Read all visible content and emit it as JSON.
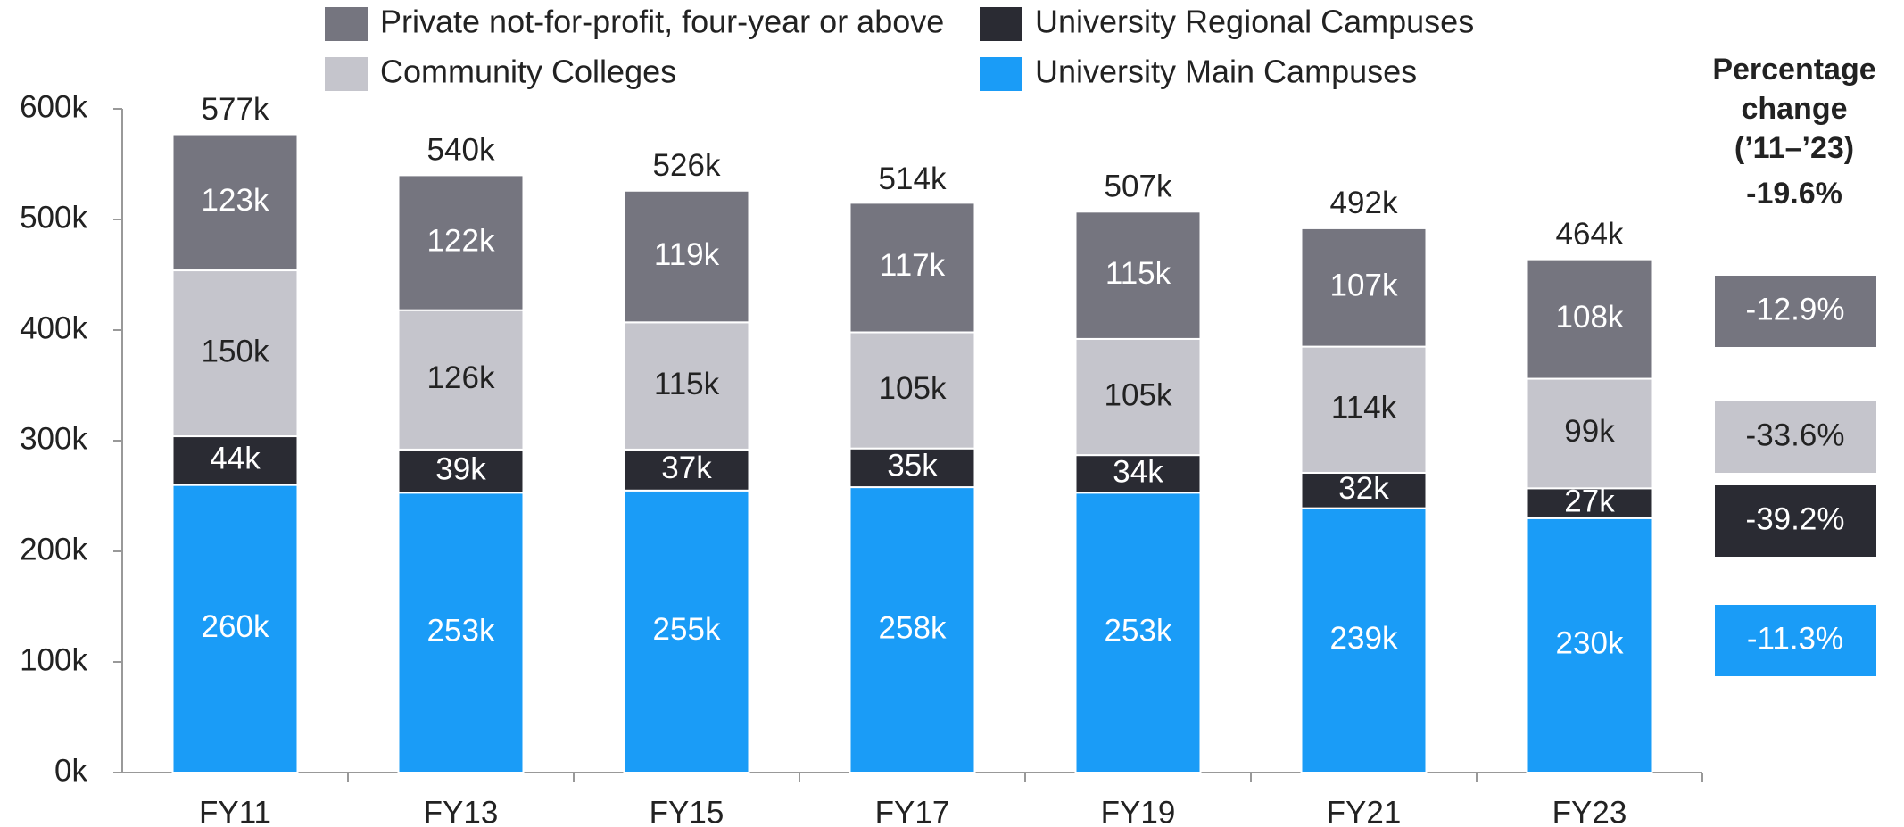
{
  "chart_data": {
    "type": "stacked_bar",
    "categories": [
      "FY11",
      "FY13",
      "FY15",
      "FY17",
      "FY19",
      "FY21",
      "FY23"
    ],
    "series": [
      {
        "name": "University Main Campuses",
        "color": "#1a9cf7",
        "values": [
          260000,
          253000,
          255000,
          258000,
          253000,
          239000,
          230000
        ],
        "value_labels": [
          "260k",
          "253k",
          "255k",
          "258k",
          "253k",
          "239k",
          "230k"
        ],
        "change": -11.3,
        "change_label": "-11.3%"
      },
      {
        "name": "University Regional Campuses",
        "color": "#2a2b33",
        "values": [
          44000,
          39000,
          37000,
          35000,
          34000,
          32000,
          27000
        ],
        "value_labels": [
          "44k",
          "39k",
          "37k",
          "35k",
          "34k",
          "32k",
          "27k"
        ],
        "change": -39.2,
        "change_label": "-39.2%"
      },
      {
        "name": "Community Colleges",
        "color": "#c5c5cc",
        "values": [
          150000,
          126000,
          115000,
          105000,
          105000,
          114000,
          99000
        ],
        "value_labels": [
          "150k",
          "126k",
          "115k",
          "105k",
          "105k",
          "114k",
          "99k"
        ],
        "change": -33.6,
        "change_label": "-33.6%"
      },
      {
        "name": "Private not-for-profit, four-year or above",
        "color": "#75757f",
        "values": [
          123000,
          122000,
          119000,
          117000,
          115000,
          107000,
          108000
        ],
        "value_labels": [
          "123k",
          "122k",
          "119k",
          "117k",
          "115k",
          "107k",
          "108k"
        ],
        "change": -12.9,
        "change_label": "-12.9%"
      }
    ],
    "totals": [
      577000,
      540000,
      526000,
      514000,
      507000,
      492000,
      464000
    ],
    "total_labels": [
      "577k",
      "540k",
      "526k",
      "514k",
      "507k",
      "492k",
      "464k"
    ],
    "change_title": "Percentage change (’11–’23)",
    "total_change": -19.6,
    "total_change_label": "-19.6%",
    "ylim": [
      0,
      600000
    ],
    "yticks": [
      {
        "value": 0,
        "label": "0k"
      },
      {
        "value": 100000,
        "label": "100k"
      },
      {
        "value": 200000,
        "label": "200k"
      },
      {
        "value": 300000,
        "label": "300k"
      },
      {
        "value": 400000,
        "label": "400k"
      },
      {
        "value": 500000,
        "label": "500k"
      },
      {
        "value": 600000,
        "label": "600k"
      }
    ]
  }
}
